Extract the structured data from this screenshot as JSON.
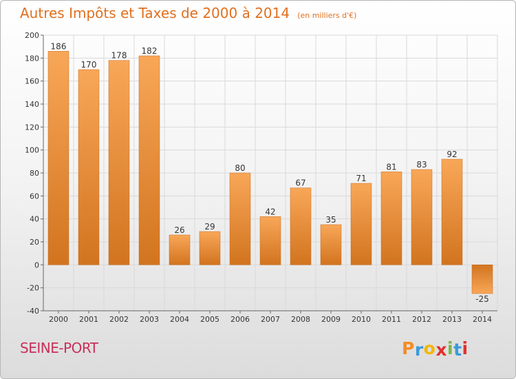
{
  "chart_data": {
    "type": "bar",
    "title": "Autres Impôts et Taxes de 2000 à 2014",
    "unit_note": "(en milliers d'€)",
    "categories": [
      "2000",
      "2001",
      "2002",
      "2003",
      "2004",
      "2005",
      "2006",
      "2007",
      "2008",
      "2009",
      "2010",
      "2011",
      "2012",
      "2013",
      "2014"
    ],
    "values": [
      186,
      170,
      178,
      182,
      26,
      29,
      80,
      42,
      67,
      35,
      71,
      81,
      83,
      92,
      -25
    ],
    "ylim": [
      -40,
      200
    ],
    "yticks": [
      -40,
      -20,
      0,
      20,
      40,
      60,
      80,
      100,
      120,
      140,
      160,
      180,
      200
    ],
    "grid": true,
    "bar_color": "#f0903a"
  },
  "commune": "SEINE-PORT",
  "logo": {
    "text": "Proxiti",
    "colors": [
      "#f28c28",
      "#3a9bd8",
      "#f2b705",
      "#e0312d",
      "#7ab648",
      "#3a9bd8",
      "#e0312d"
    ]
  }
}
